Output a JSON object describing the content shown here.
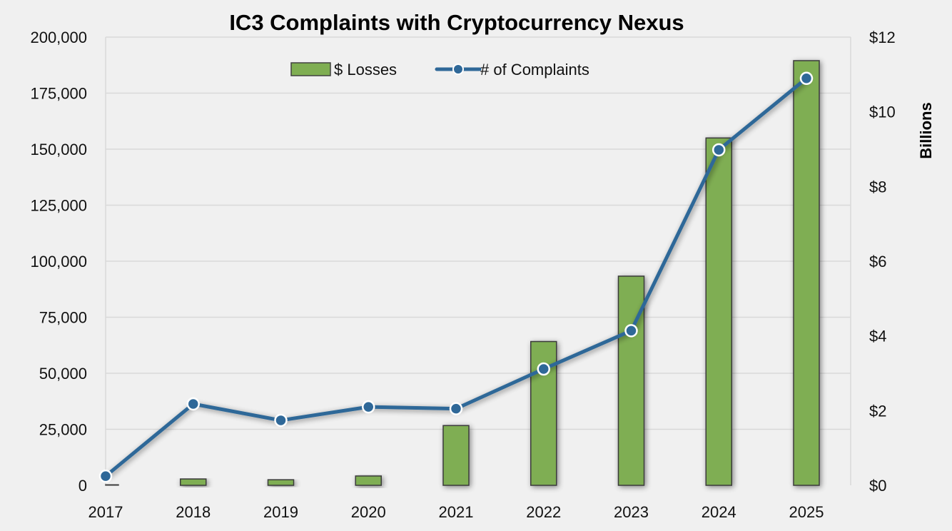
{
  "chart_data": {
    "type": "bar+line",
    "title": "IC3 Complaints with Cryptocurrency Nexus",
    "categories": [
      "2017",
      "2018",
      "2019",
      "2020",
      "2021",
      "2022",
      "2023",
      "2024",
      "2025"
    ],
    "series": [
      {
        "name": "$ Losses",
        "type": "bar",
        "axis": "right",
        "color": "#7fae52",
        "values": [
          0.02,
          0.17,
          0.15,
          0.25,
          1.6,
          3.85,
          5.6,
          9.3,
          11.37
        ]
      },
      {
        "name": "# of Complaints",
        "type": "line",
        "axis": "left",
        "color": "#2f6898",
        "values": [
          4100,
          36300,
          29000,
          35000,
          34200,
          51900,
          69000,
          149700,
          181600
        ]
      }
    ],
    "y_left": {
      "range": [
        0,
        200000
      ],
      "ticks": [
        0,
        25000,
        50000,
        75000,
        100000,
        125000,
        150000,
        175000,
        200000
      ],
      "tick_labels": [
        "0",
        "25,000",
        "50,000",
        "75,000",
        "100,000",
        "125,000",
        "150,000",
        "175,000",
        "200,000"
      ]
    },
    "y_right": {
      "label": "Billions",
      "range": [
        0,
        12
      ],
      "ticks": [
        0,
        2,
        4,
        6,
        8,
        10,
        12
      ],
      "tick_labels": [
        "$0",
        "$2",
        "$4",
        "$6",
        "$8",
        "$10",
        "$12"
      ]
    },
    "grid": true,
    "legend_placement": "top-center"
  }
}
